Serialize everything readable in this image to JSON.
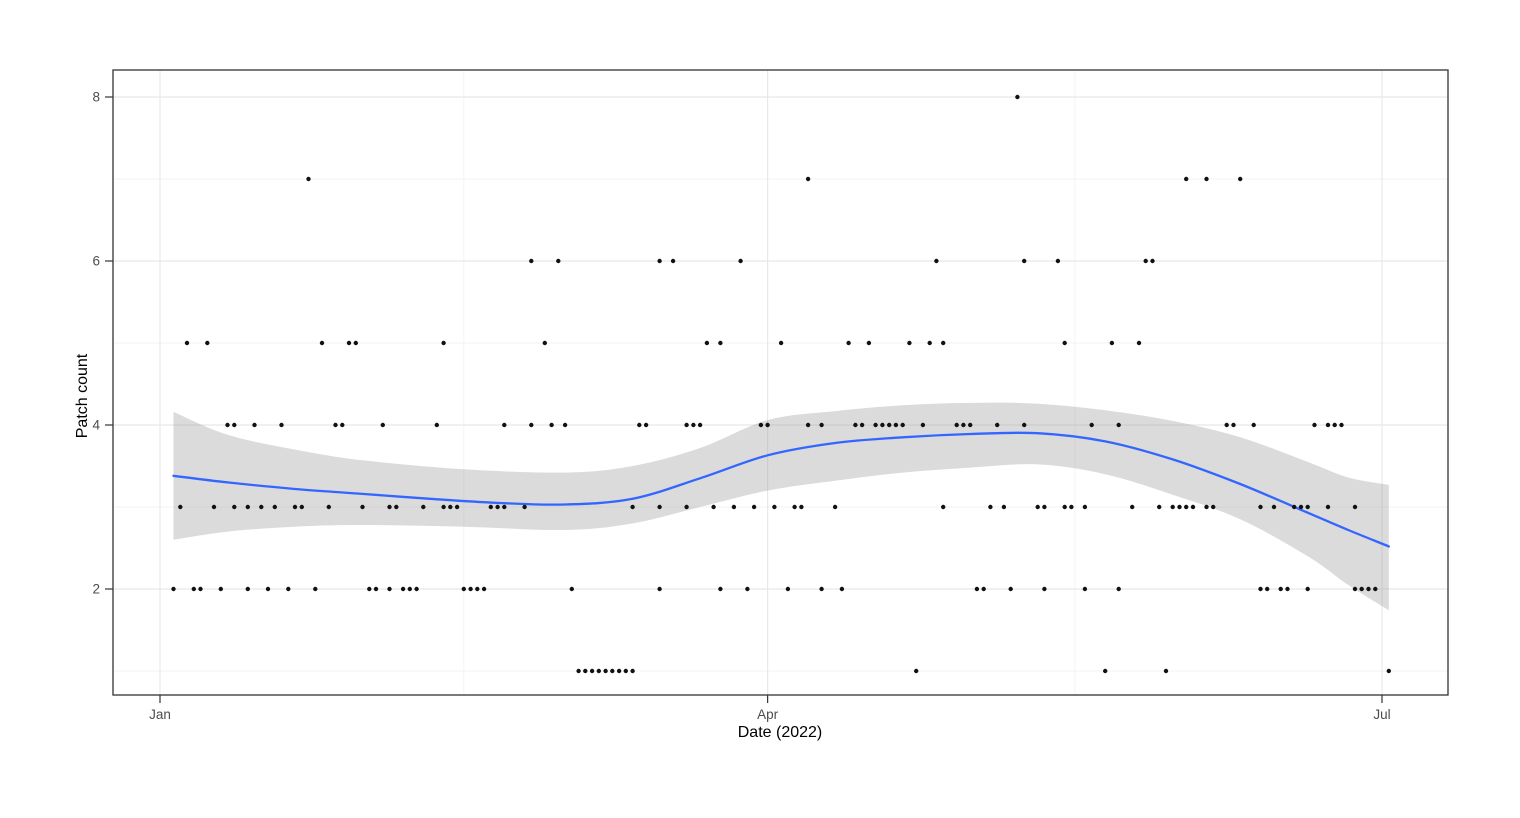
{
  "chart_data": {
    "type": "scatter",
    "title": "",
    "xlabel": "Date (2022)",
    "ylabel": "Patch count",
    "x_axis": {
      "tick_labels": [
        "Jan",
        "Apr",
        "Jul"
      ],
      "tick_days": [
        0,
        90,
        181
      ],
      "minor_grid_days": [
        45,
        135.5
      ],
      "range_days": [
        -7,
        191
      ]
    },
    "y_axis": {
      "tick_labels": [
        "2",
        "4",
        "6",
        "8"
      ],
      "tick_values": [
        2,
        4,
        6,
        8
      ],
      "minor_grid_values": [
        1,
        3,
        5,
        7
      ],
      "range": [
        0.7,
        8.35
      ]
    },
    "grid": "on",
    "legend": "none",
    "points_by_count": {
      "1": [
        62,
        63,
        64,
        65,
        66,
        67,
        68,
        69,
        70,
        112,
        140,
        149,
        182
      ],
      "2": [
        2,
        5,
        6,
        9,
        13,
        16,
        19,
        23,
        31,
        32,
        34,
        36,
        37,
        38,
        45,
        46,
        47,
        48,
        61,
        74,
        83,
        87,
        93,
        98,
        101,
        121,
        122,
        126,
        131,
        137,
        142,
        163,
        164,
        166,
        167,
        170,
        177,
        178,
        179,
        180
      ],
      "3": [
        3,
        8,
        11,
        13,
        15,
        17,
        20,
        21,
        25,
        30,
        34,
        35,
        39,
        42,
        43,
        44,
        49,
        50,
        51,
        54,
        70,
        74,
        78,
        82,
        85,
        88,
        91,
        94,
        95,
        100,
        116,
        123,
        125,
        130,
        131,
        134,
        135,
        137,
        144,
        148,
        150,
        151,
        152,
        153,
        155,
        156,
        163,
        165,
        168,
        169,
        170,
        173,
        177
      ],
      "4": [
        10,
        11,
        14,
        18,
        26,
        27,
        33,
        41,
        51,
        55,
        58,
        60,
        71,
        72,
        78,
        79,
        80,
        89,
        90,
        96,
        98,
        103,
        104,
        106,
        107,
        108,
        109,
        110,
        113,
        118,
        119,
        120,
        124,
        128,
        138,
        142,
        158,
        159,
        162,
        171,
        173,
        174,
        175
      ],
      "5": [
        4,
        7,
        24,
        28,
        29,
        42,
        57,
        81,
        83,
        92,
        102,
        105,
        111,
        114,
        116,
        134,
        141,
        145
      ],
      "6": [
        55,
        59,
        74,
        76,
        86,
        115,
        128,
        133,
        146,
        147
      ],
      "7": [
        22,
        96,
        152,
        155,
        160
      ],
      "8": [
        127
      ]
    },
    "smooth_line": [
      [
        2,
        3.38
      ],
      [
        10,
        3.3
      ],
      [
        20,
        3.22
      ],
      [
        30,
        3.16
      ],
      [
        40,
        3.1
      ],
      [
        50,
        3.05
      ],
      [
        60,
        3.03
      ],
      [
        70,
        3.1
      ],
      [
        80,
        3.35
      ],
      [
        90,
        3.63
      ],
      [
        100,
        3.78
      ],
      [
        110,
        3.85
      ],
      [
        120,
        3.89
      ],
      [
        130,
        3.9
      ],
      [
        140,
        3.8
      ],
      [
        150,
        3.58
      ],
      [
        160,
        3.28
      ],
      [
        170,
        2.93
      ],
      [
        176,
        2.72
      ],
      [
        182,
        2.52
      ]
    ],
    "confidence_band": [
      [
        2,
        4.16,
        2.6
      ],
      [
        10,
        3.88,
        2.7
      ],
      [
        20,
        3.7,
        2.76
      ],
      [
        30,
        3.57,
        2.78
      ],
      [
        45,
        3.46,
        2.76
      ],
      [
        60,
        3.42,
        2.72
      ],
      [
        70,
        3.5,
        2.8
      ],
      [
        80,
        3.72,
        3.0
      ],
      [
        90,
        4.06,
        3.2
      ],
      [
        100,
        4.17,
        3.32
      ],
      [
        110,
        4.24,
        3.42
      ],
      [
        120,
        4.27,
        3.48
      ],
      [
        130,
        4.26,
        3.52
      ],
      [
        140,
        4.18,
        3.4
      ],
      [
        150,
        4.05,
        3.15
      ],
      [
        160,
        3.85,
        2.85
      ],
      [
        170,
        3.55,
        2.4
      ],
      [
        176,
        3.36,
        2.05
      ],
      [
        182,
        3.27,
        1.74
      ]
    ],
    "colors": {
      "smooth_line": "#3366FF",
      "confidence_band": "#999999",
      "confidence_band_opacity": 0.35,
      "points": "#111111",
      "grid_major": "#E8E8E8",
      "grid_minor": "#F3F3F3",
      "panel_border": "#333333",
      "tick_text": "#4D4D4D",
      "background": "#FFFFFF"
    }
  }
}
